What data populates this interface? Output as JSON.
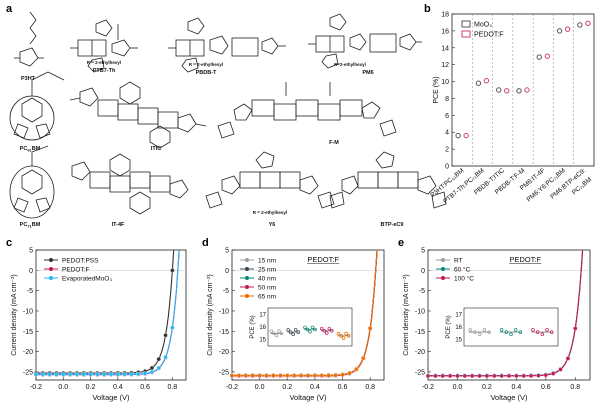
{
  "panel_letters": {
    "a": "a",
    "b": "b",
    "c": "c",
    "d": "d",
    "e": "e"
  },
  "molecules": [
    {
      "name": "P3HT"
    },
    {
      "name": "PTB7-Th",
      "sub": "R = 2-ethylhexyl"
    },
    {
      "name": "PBDB-T",
      "sub": "R = 2-ethylhexyl"
    },
    {
      "name": "PM6",
      "sub": "R=2-ethylhexyl"
    },
    {
      "name": "PC61BM"
    },
    {
      "name": "ITIC"
    },
    {
      "name": "F-M"
    },
    {
      "name": "PC71BM"
    },
    {
      "name": "IT-4F"
    },
    {
      "name": "Y6",
      "sub": "R = 2-ethylhexyl"
    },
    {
      "name": "BTP-eC9"
    }
  ],
  "chart_data": [
    {
      "id": "b",
      "type": "scatter",
      "ylabel": "PCE (%)",
      "ylim": [
        0,
        18
      ],
      "yticks": [
        0,
        2,
        4,
        6,
        8,
        10,
        12,
        14,
        16,
        18
      ],
      "categories": [
        "P3HT:PC61BM",
        "PTB7-Th:PC71BM",
        "PBDB-T:ITIC",
        "PBDB-T:F-M",
        "PM6:IT-4F",
        "PM6:Y6:PC71BM",
        "PM6:BTP-eC9:PC71BM"
      ],
      "category_labels": [
        "P3HT:PC₆₁BM",
        "PTB7-Th:PC₇₁BM",
        "PBDB-T:ITIC",
        "PBDB-T:F-M",
        "PM6:IT-4F",
        "PM6:Y6:PC₇₁BM",
        "PM6:BTP-eC9:"
      ],
      "category_label_extra": "PC₇₁BM",
      "series": [
        {
          "name": "MoO3",
          "label": "MoO₃",
          "color": "#555555",
          "values": [
            3.6,
            9.8,
            9.0,
            8.9,
            12.9,
            16.0,
            16.7
          ]
        },
        {
          "name": "PEDOT:F",
          "label": "PEDOT:F",
          "color": "#d0407c",
          "values": [
            3.6,
            10.1,
            8.9,
            9.0,
            13.0,
            16.2,
            16.9
          ]
        }
      ],
      "legend": "top-left"
    },
    {
      "id": "c",
      "type": "line",
      "xlabel": "Voltage (V)",
      "ylabel": "Current density (mA cm⁻²)",
      "xlim": [
        -0.2,
        0.9
      ],
      "ylim": [
        -27,
        5
      ],
      "xticks": [
        "-0.2",
        "0.0",
        "0.2",
        "0.4",
        "0.6",
        "0.8"
      ],
      "yticks": [
        "-25",
        "-20",
        "-15",
        "-10",
        "-5",
        "0",
        "5"
      ],
      "series": [
        {
          "name": "PEDOT:PSS",
          "color": "#333333",
          "voc": 0.8,
          "jsc": -25.3
        },
        {
          "name": "PEDOT:F",
          "color": "#c2185b",
          "voc": 0.84,
          "jsc": -25.7
        },
        {
          "name": "EvaporatedMoO3",
          "label": "EvaporatedMoO₃",
          "color": "#29b6f6",
          "voc": 0.84,
          "jsc": -25.6
        }
      ],
      "legend": "top-left"
    },
    {
      "id": "d",
      "type": "line",
      "title": "PEDOT:F",
      "xlabel": "Voltage (V)",
      "ylabel": "Current density (mA cm⁻²)",
      "xlim": [
        -0.2,
        0.9
      ],
      "ylim": [
        -27,
        5
      ],
      "xticks": [
        "-0.2",
        "0.0",
        "0.2",
        "0.4",
        "0.6",
        "0.8"
      ],
      "yticks": [
        "-25",
        "-20",
        "-15",
        "-10",
        "-5",
        "0",
        "5"
      ],
      "series": [
        {
          "name": "15 nm",
          "color": "#9e9e9e",
          "voc": 0.84,
          "jsc": -25.8
        },
        {
          "name": "25 nm",
          "color": "#37474f",
          "voc": 0.84,
          "jsc": -25.9
        },
        {
          "name": "40 nm",
          "color": "#00897b",
          "voc": 0.84,
          "jsc": -26.0
        },
        {
          "name": "50 nm",
          "color": "#c2185b",
          "voc": 0.84,
          "jsc": -26.0
        },
        {
          "name": "65 nm",
          "color": "#ef6c00",
          "voc": 0.84,
          "jsc": -25.9
        }
      ],
      "inset": {
        "ylabel": "PCE (%)",
        "yticks": [
          "15",
          "16",
          "17"
        ],
        "ylim": [
          14.5,
          17.5
        ],
        "means": [
          15.5,
          15.6,
          15.8,
          15.7,
          15.3
        ]
      },
      "legend": "top-left"
    },
    {
      "id": "e",
      "type": "line",
      "title": "PEDOT:F",
      "xlabel": "Voltage (V)",
      "ylabel": "Current density (mA cm⁻²)",
      "xlim": [
        -0.2,
        0.9
      ],
      "ylim": [
        -27,
        5
      ],
      "xticks": [
        "-0.2",
        "0.0",
        "0.2",
        "0.4",
        "0.6",
        "0.8"
      ],
      "yticks": [
        "-25",
        "-20",
        "-15",
        "-10",
        "-5",
        "0",
        "5"
      ],
      "series": [
        {
          "name": "RT",
          "color": "#9e9e9e",
          "voc": 0.84,
          "jsc": -25.9
        },
        {
          "name": "60 °C",
          "color": "#00897b",
          "voc": 0.84,
          "jsc": -25.9
        },
        {
          "name": "100 °C",
          "color": "#c2185b",
          "voc": 0.84,
          "jsc": -26.0
        }
      ],
      "inset": {
        "ylabel": "PCE (%)",
        "yticks": [
          "15",
          "16",
          "17"
        ],
        "ylim": [
          14.5,
          17.5
        ],
        "means": [
          15.6,
          15.6,
          15.6
        ]
      },
      "legend": "top-left"
    }
  ]
}
